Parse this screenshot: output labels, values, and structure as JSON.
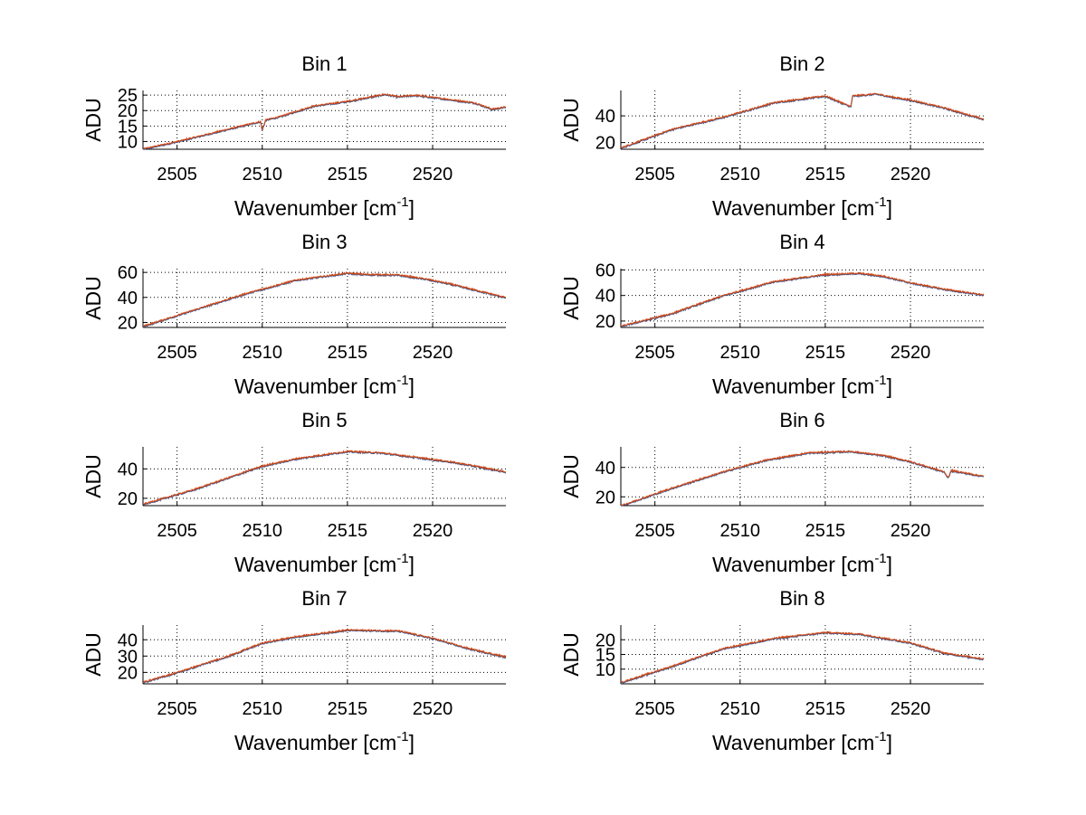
{
  "colors": {
    "trace": "#d14a18",
    "trace_under": "#2c4f8f",
    "grid": "#000000",
    "axes": "#000000",
    "background": "#ffffff"
  },
  "chart_data": [
    {
      "type": "line",
      "title": "Bin 1",
      "xlabel": "Wavenumber [cm",
      "xlabel_sup": "-1",
      "xlabel_tail": "]",
      "ylabel": "ADU",
      "xlim": [
        2503,
        2524.3
      ],
      "ylim": [
        7.5,
        26.5
      ],
      "xticks": [
        2505,
        2510,
        2515,
        2520
      ],
      "yticks": [
        10,
        15,
        20,
        25
      ],
      "grid": true,
      "series": [
        {
          "values": [
            [
              2503,
              7.6
            ],
            [
              2505,
              10.0
            ],
            [
              2508,
              14.0
            ],
            [
              2509.9,
              16.5
            ],
            [
              2510,
              13.8
            ],
            [
              2510.2,
              17.0
            ],
            [
              2511,
              18.0
            ],
            [
              2513,
              21.5
            ],
            [
              2515,
              23.0
            ],
            [
              2517.2,
              25.3
            ],
            [
              2518,
              24.5
            ],
            [
              2519,
              25.0
            ],
            [
              2521,
              23.6
            ],
            [
              2522.5,
              22.5
            ],
            [
              2523.5,
              20.5
            ],
            [
              2524.3,
              21.2
            ]
          ]
        }
      ]
    },
    {
      "type": "line",
      "title": "Bin 2",
      "xlabel": "Wavenumber [cm",
      "xlabel_sup": "-1",
      "xlabel_tail": "]",
      "ylabel": "ADU",
      "xlim": [
        2503,
        2524.3
      ],
      "ylim": [
        15,
        59
      ],
      "xticks": [
        2505,
        2510,
        2515,
        2520
      ],
      "yticks": [
        20,
        40
      ],
      "grid": true,
      "series": [
        {
          "values": [
            [
              2503,
              16.0
            ],
            [
              2506,
              30.0
            ],
            [
              2509,
              39.0
            ],
            [
              2512,
              50.0
            ],
            [
              2515,
              55.0
            ],
            [
              2516.5,
              47.0
            ],
            [
              2516.6,
              55.0
            ],
            [
              2518,
              56.5
            ],
            [
              2519,
              54.0
            ],
            [
              2520,
              52.0
            ],
            [
              2522,
              46.0
            ],
            [
              2524.3,
              37.5
            ]
          ]
        }
      ]
    },
    {
      "type": "line",
      "title": "Bin 3",
      "xlabel": "Wavenumber [cm",
      "xlabel_sup": "-1",
      "xlabel_tail": "]",
      "ylabel": "ADU",
      "xlim": [
        2503,
        2524.3
      ],
      "ylim": [
        16,
        63
      ],
      "xticks": [
        2505,
        2510,
        2515,
        2520
      ],
      "yticks": [
        20,
        40,
        60
      ],
      "grid": true,
      "series": [
        {
          "values": [
            [
              2503,
              17.0
            ],
            [
              2506,
              30.0
            ],
            [
              2509,
              43.0
            ],
            [
              2512,
              54.0
            ],
            [
              2515,
              59.5
            ],
            [
              2516,
              58.5
            ],
            [
              2518,
              58.0
            ],
            [
              2519.5,
              55.0
            ],
            [
              2521,
              51.0
            ],
            [
              2522.5,
              46.0
            ],
            [
              2524.3,
              40.0
            ]
          ]
        }
      ]
    },
    {
      "type": "line",
      "title": "Bin 4",
      "xlabel": "Wavenumber [cm",
      "xlabel_sup": "-1",
      "xlabel_tail": "]",
      "ylabel": "ADU",
      "xlim": [
        2503,
        2524.3
      ],
      "ylim": [
        15,
        61
      ],
      "xticks": [
        2505,
        2510,
        2515,
        2520
      ],
      "yticks": [
        20,
        40,
        60
      ],
      "grid": true,
      "series": [
        {
          "values": [
            [
              2503,
              16.0
            ],
            [
              2506,
              26.0
            ],
            [
              2509,
              40.0
            ],
            [
              2512,
              51.0
            ],
            [
              2515,
              56.5
            ],
            [
              2517,
              57.5
            ],
            [
              2518.5,
              55.0
            ],
            [
              2520,
              50.0
            ],
            [
              2522,
              45.0
            ],
            [
              2524.3,
              40.5
            ]
          ]
        }
      ]
    },
    {
      "type": "line",
      "title": "Bin 5",
      "xlabel": "Wavenumber [cm",
      "xlabel_sup": "-1",
      "xlabel_tail": "]",
      "ylabel": "ADU",
      "xlim": [
        2503,
        2524.3
      ],
      "ylim": [
        15,
        55
      ],
      "xticks": [
        2505,
        2510,
        2515,
        2520
      ],
      "yticks": [
        20,
        40
      ],
      "grid": true,
      "series": [
        {
          "values": [
            [
              2503,
              16.0
            ],
            [
              2506,
              26.0
            ],
            [
              2507.5,
              32.0
            ],
            [
              2510,
              42.0
            ],
            [
              2512,
              47.0
            ],
            [
              2515,
              52.0
            ],
            [
              2517,
              51.0
            ],
            [
              2519,
              48.0
            ],
            [
              2521,
              45.0
            ],
            [
              2522.5,
              42.0
            ],
            [
              2524.3,
              38.0
            ]
          ]
        }
      ]
    },
    {
      "type": "line",
      "title": "Bin 6",
      "xlabel": "Wavenumber [cm",
      "xlabel_sup": "-1",
      "xlabel_tail": "]",
      "ylabel": "ADU",
      "xlim": [
        2503,
        2524.3
      ],
      "ylim": [
        14,
        54
      ],
      "xticks": [
        2505,
        2510,
        2515,
        2520
      ],
      "yticks": [
        20,
        40
      ],
      "grid": true,
      "series": [
        {
          "values": [
            [
              2503,
              14.0
            ],
            [
              2506,
              26.0
            ],
            [
              2509,
              37.0
            ],
            [
              2511.5,
              45.0
            ],
            [
              2514,
              50.0
            ],
            [
              2516.5,
              51.0
            ],
            [
              2518.5,
              48.0
            ],
            [
              2520,
              44.0
            ],
            [
              2522,
              37.0
            ],
            [
              2522.2,
              33.0
            ],
            [
              2522.4,
              38.0
            ],
            [
              2524.3,
              34.0
            ]
          ]
        }
      ]
    },
    {
      "type": "line",
      "title": "Bin 7",
      "xlabel": "Wavenumber [cm",
      "xlabel_sup": "-1",
      "xlabel_tail": "]",
      "ylabel": "ADU",
      "xlim": [
        2503,
        2524.3
      ],
      "ylim": [
        13,
        49
      ],
      "xticks": [
        2505,
        2510,
        2515,
        2520
      ],
      "yticks": [
        20,
        30,
        40
      ],
      "grid": true,
      "series": [
        {
          "values": [
            [
              2503,
              14.0
            ],
            [
              2505,
              20.0
            ],
            [
              2508,
              30.0
            ],
            [
              2510,
              38.0
            ],
            [
              2512,
              42.0
            ],
            [
              2515,
              46.0
            ],
            [
              2518,
              45.5
            ],
            [
              2520,
              41.0
            ],
            [
              2522,
              35.0
            ],
            [
              2524.3,
              29.5
            ]
          ]
        }
      ]
    },
    {
      "type": "line",
      "title": "Bin 8",
      "xlabel": "Wavenumber [cm",
      "xlabel_sup": "-1",
      "xlabel_tail": "]",
      "ylabel": "ADU",
      "xlim": [
        2503,
        2524.3
      ],
      "ylim": [
        5,
        25
      ],
      "xticks": [
        2505,
        2510,
        2515,
        2520
      ],
      "yticks": [
        10,
        15,
        20
      ],
      "grid": true,
      "series": [
        {
          "values": [
            [
              2503,
              5.5
            ],
            [
              2506,
              11.0
            ],
            [
              2509,
              17.0
            ],
            [
              2512,
              20.5
            ],
            [
              2515,
              22.5
            ],
            [
              2517,
              22.0
            ],
            [
              2520,
              19.0
            ],
            [
              2522,
              15.5
            ],
            [
              2524.3,
              13.5
            ]
          ]
        }
      ]
    }
  ]
}
